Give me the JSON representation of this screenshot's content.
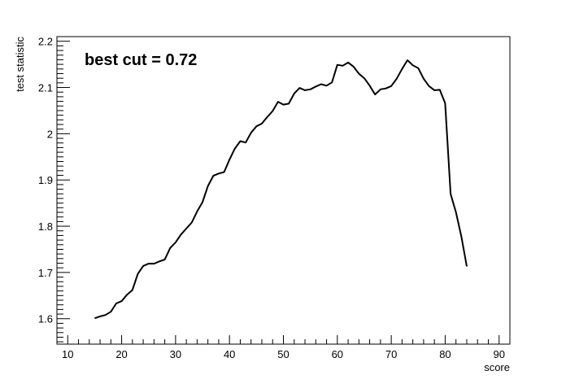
{
  "chart_data": {
    "type": "line",
    "title": "",
    "annotation": "best cut = 0.72",
    "xlabel": "score",
    "ylabel": "test statistic",
    "xlim": [
      8,
      92
    ],
    "ylim": [
      1.545,
      2.21
    ],
    "x_ticks": [
      10,
      20,
      30,
      40,
      50,
      60,
      70,
      80,
      90
    ],
    "x_tick_labels": [
      "10",
      "20",
      "30",
      "40",
      "50",
      "60",
      "70",
      "80",
      "90"
    ],
    "y_ticks": [
      1.6,
      1.7,
      1.8,
      1.9,
      2.0,
      2.1,
      2.2
    ],
    "y_tick_labels": [
      "1.6",
      "1.7",
      "1.8",
      "1.9",
      "2",
      "2.1",
      "2.2"
    ],
    "grid": false,
    "line_color": "#000000",
    "series": [
      {
        "x": [
          15,
          16,
          17,
          18,
          19,
          20,
          21,
          22,
          23,
          24,
          25,
          26,
          27,
          28,
          29,
          30,
          31,
          32,
          33,
          34,
          35,
          36,
          37,
          38,
          39,
          40,
          41,
          42,
          43,
          44,
          45,
          46,
          47,
          48,
          49,
          50,
          51,
          52,
          53,
          54,
          55,
          56,
          57,
          58,
          59,
          60,
          61,
          62,
          63,
          64,
          65,
          66,
          67,
          68,
          69,
          70,
          71,
          72,
          73,
          74,
          75,
          76,
          77,
          78,
          79,
          80,
          81,
          82,
          83,
          84
        ],
        "y": [
          1.601,
          1.605,
          1.608,
          1.615,
          1.633,
          1.638,
          1.652,
          1.662,
          1.697,
          1.714,
          1.719,
          1.719,
          1.724,
          1.728,
          1.753,
          1.765,
          1.782,
          1.795,
          1.808,
          1.832,
          1.852,
          1.887,
          1.909,
          1.914,
          1.917,
          1.944,
          1.968,
          1.984,
          1.981,
          2.002,
          2.016,
          2.022,
          2.036,
          2.049,
          2.069,
          2.063,
          2.065,
          2.087,
          2.099,
          2.094,
          2.096,
          2.102,
          2.107,
          2.104,
          2.111,
          2.149,
          2.147,
          2.154,
          2.145,
          2.13,
          2.12,
          2.104,
          2.085,
          2.096,
          2.098,
          2.103,
          2.119,
          2.14,
          2.159,
          2.148,
          2.142,
          2.119,
          2.103,
          2.094,
          2.095,
          2.066,
          1.87,
          1.83,
          1.778,
          1.713
        ]
      }
    ]
  }
}
